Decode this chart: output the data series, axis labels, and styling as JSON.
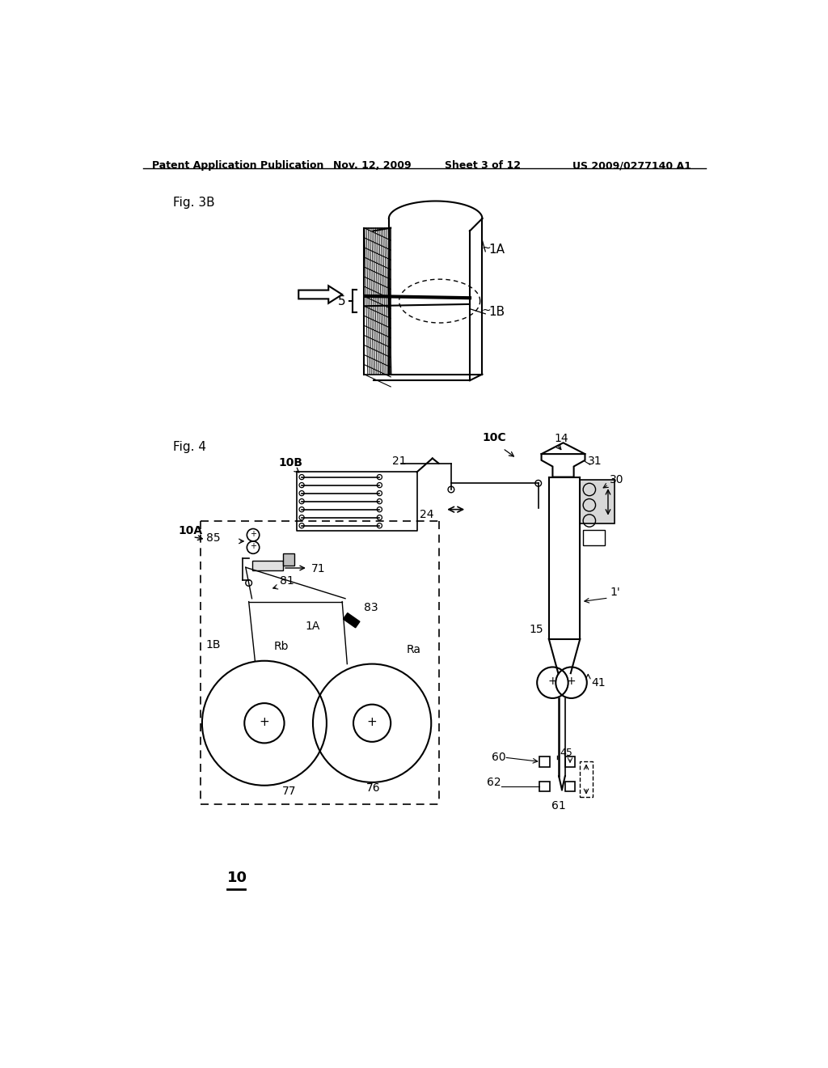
{
  "background_color": "#ffffff",
  "header_text": "Patent Application Publication",
  "header_date": "Nov. 12, 2009",
  "header_sheet": "Sheet 3 of 12",
  "header_patent": "US 2009/0277140 A1",
  "fig3b_label": "Fig. 3B",
  "fig4_label": "Fig. 4",
  "label_10": "10"
}
